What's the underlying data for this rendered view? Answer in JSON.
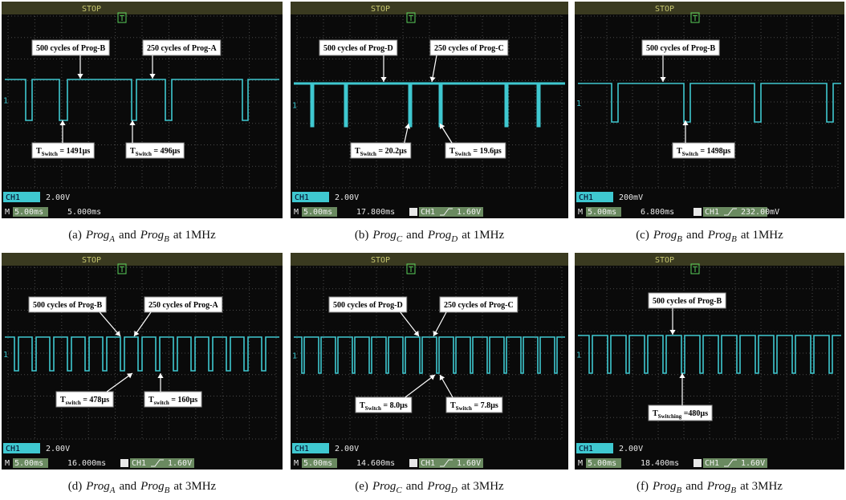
{
  "panels": [
    {
      "status": "STOP",
      "trigger_mark": "T",
      "channel_marker": "1",
      "labels": [
        {
          "text": "500 cycles of Prog-B"
        },
        {
          "text": "250 cycles of Prog-A"
        },
        {
          "main": "T",
          "sub": "Switch",
          "rest": " = 1491µs"
        },
        {
          "main": "T",
          "sub": "Switch",
          "rest": " = 496µs"
        }
      ],
      "channel": "CH1",
      "volts_per_div": "2.00V",
      "mode": "M",
      "timebase": "5.00ms",
      "position": "5.000ms",
      "caption": {
        "label": "(a)",
        "prog1": "Prog",
        "sub1": "A",
        "joiner": "and",
        "prog2": "Prog",
        "sub2": "B",
        "freq": "at 1MHz"
      }
    },
    {
      "status": "STOP",
      "trigger_mark": "T",
      "channel_marker": "1",
      "labels": [
        {
          "text": "500 cycles of Prog-D"
        },
        {
          "text": "250 cycles of Prog-C"
        },
        {
          "main": "T",
          "sub": "Switch",
          "rest": " = 20.2µs"
        },
        {
          "main": "T",
          "sub": "Switch",
          "rest": " = 19.6µs"
        }
      ],
      "channel": "CH1",
      "volts_per_div": "2.00V",
      "mode": "M",
      "timebase": "5.00ms",
      "position": "17.800ms",
      "trigger_channel": "CH1",
      "trigger_level": "1.60V",
      "caption": {
        "label": "(b)",
        "prog1": "Prog",
        "sub1": "C",
        "joiner": "and",
        "prog2": "Prog",
        "sub2": "D",
        "freq": "at 1MHz"
      }
    },
    {
      "status": "STOP",
      "trigger_mark": "T",
      "channel_marker": "1",
      "labels": [
        {
          "text": "500 cycles of Prog-B"
        },
        {
          "main": "T",
          "sub": "Switch",
          "rest": " = 1498µs"
        }
      ],
      "channel": "CH1",
      "volts_per_div": "200mV",
      "mode": "M",
      "timebase": "5.00ms",
      "position": "6.800ms",
      "trigger_channel": "CH1",
      "trigger_level": "232.00mV",
      "caption": {
        "label": "(c)",
        "prog1": "Prog",
        "sub1": "B",
        "joiner": "and",
        "prog2": "Prog",
        "sub2": "B",
        "freq": "at 1MHz"
      }
    },
    {
      "status": "STOP",
      "trigger_mark": "T",
      "channel_marker": "1",
      "labels": [
        {
          "text": "500 cycles of Prog-B"
        },
        {
          "text": "250 cycles of Prog-A"
        },
        {
          "main": "T",
          "sub": "switch",
          "rest": " = 478µs"
        },
        {
          "main": "T",
          "sub": "switch",
          "rest": " = 160µs"
        }
      ],
      "channel": "CH1",
      "volts_per_div": "2.00V",
      "mode": "M",
      "timebase": "5.00ms",
      "position": "16.000ms",
      "trigger_channel": "CH1",
      "trigger_level": "1.60V",
      "caption": {
        "label": "(d)",
        "prog1": "Prog",
        "sub1": "A",
        "joiner": "and",
        "prog2": "Prog",
        "sub2": "B",
        "freq": "at 3MHz"
      }
    },
    {
      "status": "STOP",
      "trigger_mark": "T",
      "channel_marker": "1",
      "labels": [
        {
          "text": "500 cycles of Prog-D"
        },
        {
          "text": "250 cycles of Prog-C"
        },
        {
          "main": "T",
          "sub": "Switch",
          "rest": " = 8.0µs"
        },
        {
          "main": "T",
          "sub": "Switch",
          "rest": " = 7.8µs"
        }
      ],
      "channel": "CH1",
      "volts_per_div": "2.00V",
      "mode": "M",
      "timebase": "5.00ms",
      "position": "14.600ms",
      "trigger_channel": "CH1",
      "trigger_level": "1.60V",
      "caption": {
        "label": "(e)",
        "prog1": "Prog",
        "sub1": "C",
        "joiner": "and",
        "prog2": "Prog",
        "sub2": "D",
        "freq": "at 3MHz"
      }
    },
    {
      "status": "STOP",
      "trigger_mark": "T",
      "channel_marker": "1",
      "labels": [
        {
          "text": "500 cycles of Prog-B"
        },
        {
          "main": "T",
          "sub": "Switching",
          "rest": " =480µs"
        }
      ],
      "channel": "CH1",
      "volts_per_div": "2.00V",
      "mode": "M",
      "timebase": "5.00ms",
      "position": "18.400ms",
      "trigger_channel": "CH1",
      "trigger_level": "1.60V",
      "caption": {
        "label": "(f)",
        "prog1": "Prog",
        "sub1": "B",
        "joiner": "and",
        "prog2": "Prog",
        "sub2": "B",
        "freq": "at 3MHz"
      }
    }
  ]
}
